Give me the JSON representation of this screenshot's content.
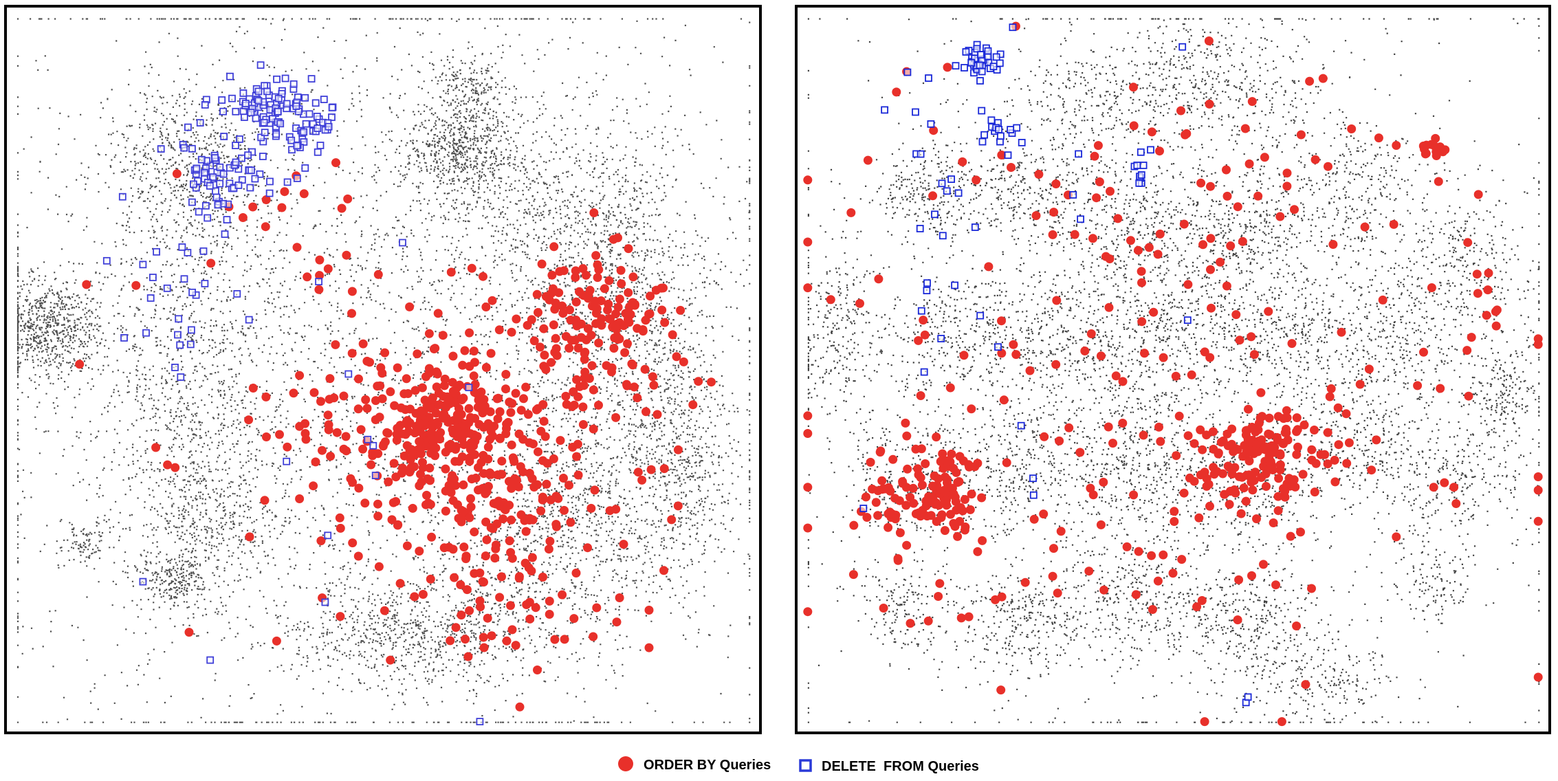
{
  "chart_data": [
    {
      "type": "scatter",
      "title": "",
      "xlabel": "",
      "ylabel": "",
      "axes_visible": false,
      "grid": false,
      "background_points": {
        "color": "#333333",
        "clusters": [
          {
            "cx": 0.05,
            "cy": 0.44,
            "sx": 0.035,
            "sy": 0.035,
            "n": 700
          },
          {
            "cx": 0.6,
            "cy": 0.19,
            "sx": 0.04,
            "sy": 0.035,
            "n": 600
          },
          {
            "cx": 0.62,
            "cy": 0.1,
            "sx": 0.025,
            "sy": 0.02,
            "n": 150
          },
          {
            "cx": 0.24,
            "cy": 0.22,
            "sx": 0.055,
            "sy": 0.06,
            "n": 700
          },
          {
            "cx": 0.24,
            "cy": 0.5,
            "sx": 0.07,
            "sy": 0.1,
            "n": 700
          },
          {
            "cx": 0.27,
            "cy": 0.7,
            "sx": 0.045,
            "sy": 0.05,
            "n": 400
          },
          {
            "cx": 0.22,
            "cy": 0.79,
            "sx": 0.03,
            "sy": 0.02,
            "n": 250
          },
          {
            "cx": 0.1,
            "cy": 0.74,
            "sx": 0.02,
            "sy": 0.015,
            "n": 100
          },
          {
            "cx": 0.54,
            "cy": 0.87,
            "sx": 0.09,
            "sy": 0.035,
            "n": 700
          },
          {
            "cx": 0.82,
            "cy": 0.4,
            "sx": 0.06,
            "sy": 0.1,
            "n": 900
          },
          {
            "cx": 0.9,
            "cy": 0.62,
            "sx": 0.035,
            "sy": 0.09,
            "n": 600
          },
          {
            "cx": 0.76,
            "cy": 0.68,
            "sx": 0.07,
            "sy": 0.08,
            "n": 500
          },
          {
            "cx": 0.72,
            "cy": 0.28,
            "sx": 0.09,
            "sy": 0.1,
            "n": 700
          },
          {
            "cx": 0.48,
            "cy": 0.5,
            "sx": 0.26,
            "sy": 0.28,
            "n": 3400
          },
          {
            "cx": 0.7,
            "cy": 0.75,
            "sx": 0.1,
            "sy": 0.08,
            "n": 500
          }
        ]
      },
      "series": [
        {
          "name": "ORDER BY Queries",
          "marker": "filled-circle",
          "color": "#e8302a",
          "clusters": [
            {
              "cx": 0.58,
              "cy": 0.58,
              "sx": 0.04,
              "sy": 0.04,
              "n": 180
            },
            {
              "cx": 0.78,
              "cy": 0.42,
              "sx": 0.04,
              "sy": 0.045,
              "n": 110
            },
            {
              "cx": 0.64,
              "cy": 0.62,
              "sx": 0.11,
              "sy": 0.12,
              "n": 300
            },
            {
              "cx": 0.66,
              "cy": 0.72,
              "sx": 0.06,
              "sy": 0.09,
              "n": 50
            },
            {
              "cx": 0.42,
              "cy": 0.58,
              "sx": 0.05,
              "sy": 0.05,
              "n": 35
            },
            {
              "cx": 0.35,
              "cy": 0.3,
              "sx": 0.07,
              "sy": 0.07,
              "n": 18
            },
            {
              "cx": 0.64,
              "cy": 0.88,
              "sx": 0.12,
              "sy": 0.02,
              "n": 12
            },
            {
              "cx": 0.88,
              "cy": 0.55,
              "sx": 0.03,
              "sy": 0.08,
              "n": 14
            },
            {
              "cx": 0.13,
              "cy": 0.39,
              "sx": 0.02,
              "sy": 0.01,
              "n": 2
            },
            {
              "cx": 0.09,
              "cy": 0.48,
              "sx": 0.005,
              "sy": 0.005,
              "n": 1
            },
            {
              "cx": 0.23,
              "cy": 0.6,
              "sx": 0.02,
              "sy": 0.02,
              "n": 3
            }
          ]
        },
        {
          "name": "DELETE  FROM Queries",
          "marker": "hollow-square",
          "color": "#3f3fd8",
          "clusters": [
            {
              "cx": 0.35,
              "cy": 0.13,
              "sx": 0.025,
              "sy": 0.02,
              "n": 70
            },
            {
              "cx": 0.41,
              "cy": 0.16,
              "sx": 0.015,
              "sy": 0.02,
              "n": 30
            },
            {
              "cx": 0.28,
              "cy": 0.22,
              "sx": 0.03,
              "sy": 0.035,
              "n": 60
            },
            {
              "cx": 0.23,
              "cy": 0.38,
              "sx": 0.05,
              "sy": 0.08,
              "n": 30
            },
            {
              "cx": 0.36,
              "cy": 0.2,
              "sx": 0.03,
              "sy": 0.03,
              "n": 20
            },
            {
              "cx": 0.35,
              "cy": 0.55,
              "sx": 0.1,
              "sy": 0.2,
              "n": 10
            },
            {
              "cx": 0.5,
              "cy": 0.5,
              "sx": 0.05,
              "sy": 0.15,
              "n": 4
            }
          ]
        }
      ]
    },
    {
      "type": "scatter",
      "title": "",
      "xlabel": "",
      "ylabel": "",
      "axes_visible": false,
      "grid": false,
      "background_points": {
        "color": "#222222",
        "clusters": [
          {
            "cx": 0.55,
            "cy": 0.1,
            "sx": 0.07,
            "sy": 0.05,
            "n": 450
          },
          {
            "cx": 0.38,
            "cy": 0.12,
            "sx": 0.05,
            "sy": 0.04,
            "n": 250
          },
          {
            "cx": 0.17,
            "cy": 0.25,
            "sx": 0.04,
            "sy": 0.04,
            "n": 250
          },
          {
            "cx": 0.3,
            "cy": 0.25,
            "sx": 0.05,
            "sy": 0.04,
            "n": 300
          },
          {
            "cx": 0.45,
            "cy": 0.3,
            "sx": 0.05,
            "sy": 0.05,
            "n": 350
          },
          {
            "cx": 0.6,
            "cy": 0.3,
            "sx": 0.05,
            "sy": 0.05,
            "n": 350
          },
          {
            "cx": 0.75,
            "cy": 0.25,
            "sx": 0.05,
            "sy": 0.05,
            "n": 300
          },
          {
            "cx": 0.9,
            "cy": 0.35,
            "sx": 0.04,
            "sy": 0.05,
            "n": 250
          },
          {
            "cx": 0.05,
            "cy": 0.45,
            "sx": 0.03,
            "sy": 0.06,
            "n": 250
          },
          {
            "cx": 0.2,
            "cy": 0.45,
            "sx": 0.05,
            "sy": 0.05,
            "n": 300
          },
          {
            "cx": 0.35,
            "cy": 0.45,
            "sx": 0.05,
            "sy": 0.05,
            "n": 350
          },
          {
            "cx": 0.5,
            "cy": 0.45,
            "sx": 0.05,
            "sy": 0.05,
            "n": 350
          },
          {
            "cx": 0.65,
            "cy": 0.45,
            "sx": 0.05,
            "sy": 0.05,
            "n": 350
          },
          {
            "cx": 0.8,
            "cy": 0.45,
            "sx": 0.05,
            "sy": 0.05,
            "n": 300
          },
          {
            "cx": 0.94,
            "cy": 0.53,
            "sx": 0.025,
            "sy": 0.04,
            "n": 200
          },
          {
            "cx": 0.15,
            "cy": 0.65,
            "sx": 0.05,
            "sy": 0.05,
            "n": 300
          },
          {
            "cx": 0.3,
            "cy": 0.63,
            "sx": 0.05,
            "sy": 0.05,
            "n": 300
          },
          {
            "cx": 0.45,
            "cy": 0.63,
            "sx": 0.05,
            "sy": 0.05,
            "n": 350
          },
          {
            "cx": 0.6,
            "cy": 0.65,
            "sx": 0.05,
            "sy": 0.05,
            "n": 350
          },
          {
            "cx": 0.75,
            "cy": 0.6,
            "sx": 0.05,
            "sy": 0.05,
            "n": 300
          },
          {
            "cx": 0.88,
            "cy": 0.65,
            "sx": 0.04,
            "sy": 0.04,
            "n": 200
          },
          {
            "cx": 0.13,
            "cy": 0.83,
            "sx": 0.03,
            "sy": 0.03,
            "n": 150
          },
          {
            "cx": 0.3,
            "cy": 0.85,
            "sx": 0.05,
            "sy": 0.04,
            "n": 300
          },
          {
            "cx": 0.45,
            "cy": 0.82,
            "sx": 0.05,
            "sy": 0.04,
            "n": 300
          },
          {
            "cx": 0.6,
            "cy": 0.85,
            "sx": 0.05,
            "sy": 0.04,
            "n": 300
          },
          {
            "cx": 0.7,
            "cy": 0.93,
            "sx": 0.05,
            "sy": 0.03,
            "n": 200
          },
          {
            "cx": 0.85,
            "cy": 0.8,
            "sx": 0.03,
            "sy": 0.03,
            "n": 120
          },
          {
            "cx": 0.5,
            "cy": 0.5,
            "sx": 0.28,
            "sy": 0.28,
            "n": 1500
          }
        ]
      },
      "series": [
        {
          "name": "ORDER BY Queries",
          "marker": "filled-circle",
          "color": "#e8302a",
          "clusters": [
            {
              "cx": 0.18,
              "cy": 0.67,
              "sx": 0.04,
              "sy": 0.035,
              "n": 120
            },
            {
              "cx": 0.6,
              "cy": 0.62,
              "sx": 0.035,
              "sy": 0.03,
              "n": 90
            },
            {
              "cx": 0.66,
              "cy": 0.63,
              "sx": 0.05,
              "sy": 0.05,
              "n": 50
            },
            {
              "cx": 0.85,
              "cy": 0.19,
              "sx": 0.012,
              "sy": 0.007,
              "n": 14
            },
            {
              "cx": 0.92,
              "cy": 0.4,
              "sx": 0.01,
              "sy": 0.03,
              "n": 8
            },
            {
              "cx": 0.45,
              "cy": 0.5,
              "sx": 0.25,
              "sy": 0.22,
              "n": 180
            },
            {
              "cx": 0.45,
              "cy": 0.2,
              "sx": 0.2,
              "sy": 0.07,
              "n": 30
            },
            {
              "cx": 0.45,
              "cy": 0.8,
              "sx": 0.15,
              "sy": 0.07,
              "n": 25
            },
            {
              "cx": 0.88,
              "cy": 0.67,
              "sx": 0.02,
              "sy": 0.01,
              "n": 4
            }
          ]
        },
        {
          "name": "DELETE  FROM Queries",
          "marker": "hollow-square",
          "color": "#1a28d8",
          "clusters": [
            {
              "cx": 0.24,
              "cy": 0.07,
              "sx": 0.014,
              "sy": 0.01,
              "n": 40
            },
            {
              "cx": 0.27,
              "cy": 0.17,
              "sx": 0.02,
              "sy": 0.015,
              "n": 15
            },
            {
              "cx": 0.46,
              "cy": 0.22,
              "sx": 0.01,
              "sy": 0.02,
              "n": 10
            },
            {
              "cx": 0.17,
              "cy": 0.27,
              "sx": 0.03,
              "sy": 0.08,
              "n": 15
            },
            {
              "cx": 0.2,
              "cy": 0.5,
              "sx": 0.06,
              "sy": 0.12,
              "n": 8
            },
            {
              "cx": 0.6,
              "cy": 0.96,
              "sx": 0.005,
              "sy": 0.01,
              "n": 2
            },
            {
              "cx": 0.35,
              "cy": 0.3,
              "sx": 0.1,
              "sy": 0.2,
              "n": 10
            },
            {
              "cx": 0.52,
              "cy": 0.05,
              "sx": 0.005,
              "sy": 0.005,
              "n": 1
            }
          ]
        }
      ]
    }
  ],
  "legend": {
    "placement": "bottom-center",
    "items": [
      {
        "label": "ORDER BY Queries",
        "marker": "filled-circle",
        "color": "#e8302a"
      },
      {
        "label": "DELETE  FROM Queries",
        "marker": "hollow-square",
        "color": "#2a3ad8"
      }
    ]
  }
}
